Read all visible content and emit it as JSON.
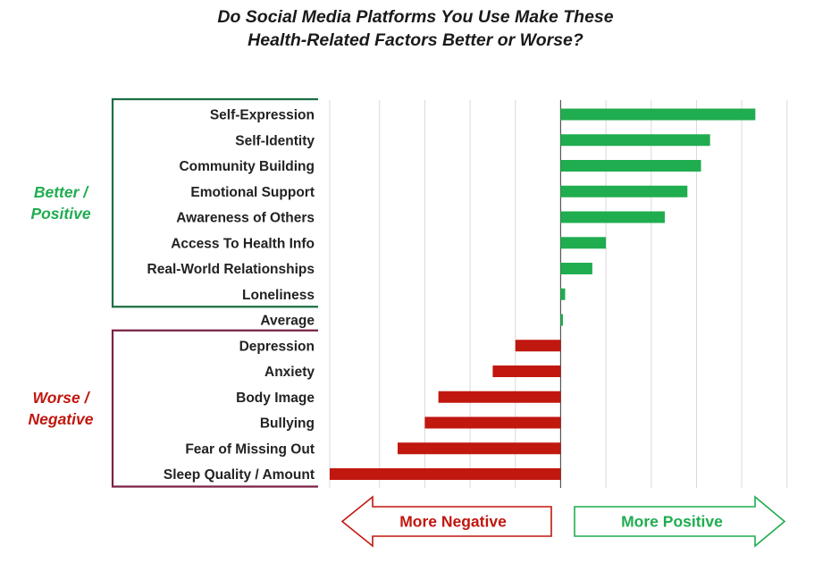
{
  "chart_data": {
    "type": "bar",
    "orientation": "horizontal",
    "title_lines": [
      "Do Social Media Platforms You Use Make These",
      "Health-Related Factors Better or Worse?"
    ],
    "categories": [
      "Self-Expression",
      "Self-Identity",
      "Community Building",
      "Emotional Support",
      "Awareness of Others",
      "Access To Health Info",
      "Real-World Relationships",
      "Loneliness",
      "Average",
      "Depression",
      "Anxiety",
      "Body Image",
      "Bullying",
      "Fear of Missing Out",
      "Sleep Quality / Amount"
    ],
    "values": [
      0.43,
      0.33,
      0.31,
      0.28,
      0.23,
      0.1,
      0.07,
      0.01,
      0.005,
      -0.1,
      -0.15,
      -0.27,
      -0.3,
      -0.36,
      -0.51
    ],
    "xlim": [
      -0.51,
      0.53
    ],
    "grid": true,
    "groups": [
      {
        "label_lines": [
          "Better /",
          "Positive"
        ],
        "color": "#1fad4f",
        "bracket_color": "#1b6e43",
        "first": 0,
        "last": 7
      },
      {
        "label_lines": [
          "Worse /",
          "Negative"
        ],
        "color": "#c0170f",
        "bracket_color": "#7a2145",
        "first": 9,
        "last": 14
      }
    ],
    "positive_color": "#1fad4f",
    "negative_color": "#c0170f",
    "arrows": {
      "negative": {
        "label": "More Negative",
        "color": "#c0170f"
      },
      "positive": {
        "label": "More Positive",
        "color": "#1fad4f"
      }
    }
  }
}
